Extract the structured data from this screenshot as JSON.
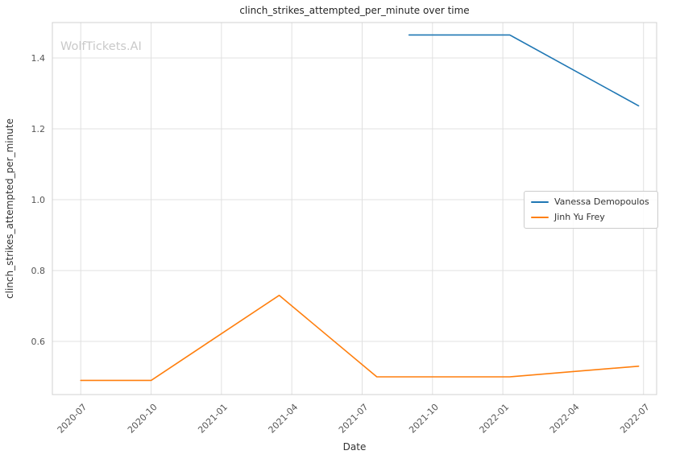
{
  "chart_data": {
    "type": "line",
    "title": "clinch_strikes_attempted_per_minute over time",
    "xlabel": "Date",
    "ylabel": "clinch_strikes_attempted_per_minute",
    "watermark": "WolfTickets.AI",
    "grid": true,
    "legend_position": "center right",
    "x_ticks": [
      "2020-07",
      "2020-10",
      "2021-01",
      "2021-04",
      "2021-07",
      "2021-10",
      "2022-01",
      "2022-04",
      "2022-07"
    ],
    "y_ticks": [
      0.6,
      0.8,
      1.0,
      1.2,
      1.4
    ],
    "xlim": [
      "2020-05-25",
      "2022-07-18"
    ],
    "ylim": [
      0.45,
      1.5
    ],
    "colors": {
      "grid": "#e0e0e0",
      "spine": "#d0d0d0",
      "tick_text": "#555555",
      "title_text": "#262626",
      "watermark_text": "#c9c9c9"
    },
    "series": [
      {
        "name": "Vanessa Demopoulos",
        "color": "#1f77b4",
        "points": [
          {
            "x": "2021-09-01",
            "y": 1.465
          },
          {
            "x": "2022-01-10",
            "y": 1.465
          },
          {
            "x": "2022-06-25",
            "y": 1.265
          }
        ]
      },
      {
        "name": "Jinh Yu Frey",
        "color": "#ff7f0e",
        "points": [
          {
            "x": "2020-07-01",
            "y": 0.49
          },
          {
            "x": "2020-10-01",
            "y": 0.49
          },
          {
            "x": "2021-03-15",
            "y": 0.73
          },
          {
            "x": "2021-07-20",
            "y": 0.5
          },
          {
            "x": "2021-10-01",
            "y": 0.5
          },
          {
            "x": "2022-01-10",
            "y": 0.5
          },
          {
            "x": "2022-04-01",
            "y": 0.515
          },
          {
            "x": "2022-06-25",
            "y": 0.53
          }
        ]
      }
    ]
  }
}
